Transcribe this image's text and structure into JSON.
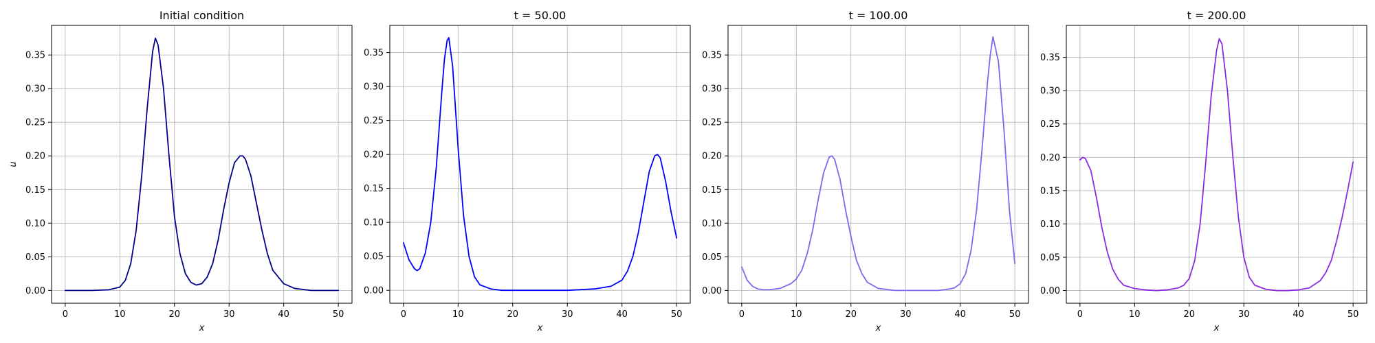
{
  "chart_data": [
    {
      "type": "line",
      "title": "Initial condition",
      "xlabel": "x",
      "ylabel": "u",
      "xlim": [
        -2.5,
        52.5
      ],
      "ylim": [
        -0.019,
        0.394
      ],
      "xticks": [
        0,
        10,
        20,
        30,
        40,
        50
      ],
      "yticks": [
        0.0,
        0.05,
        0.1,
        0.15,
        0.2,
        0.25,
        0.3,
        0.35
      ],
      "grid": true,
      "series": [
        {
          "color": "#00008b",
          "x": [
            0,
            5,
            8,
            10,
            11,
            12,
            13,
            14,
            15,
            16,
            16.5,
            17,
            18,
            19,
            20,
            21,
            22,
            23,
            24,
            25,
            26,
            27,
            28,
            29,
            30,
            31,
            32,
            32.5,
            33,
            34,
            35,
            36,
            37,
            38,
            40,
            42,
            45,
            50
          ],
          "y": [
            0.0,
            0.0,
            0.001,
            0.005,
            0.015,
            0.04,
            0.09,
            0.17,
            0.27,
            0.355,
            0.375,
            0.365,
            0.3,
            0.2,
            0.11,
            0.055,
            0.025,
            0.012,
            0.008,
            0.01,
            0.02,
            0.04,
            0.075,
            0.12,
            0.16,
            0.19,
            0.2,
            0.2,
            0.195,
            0.17,
            0.13,
            0.09,
            0.055,
            0.03,
            0.01,
            0.003,
            0.0,
            0.0
          ]
        }
      ]
    },
    {
      "type": "line",
      "title": "t = 50.00",
      "xlabel": "x",
      "ylabel": "",
      "xlim": [
        -2.5,
        52.5
      ],
      "ylim": [
        -0.019,
        0.39
      ],
      "xticks": [
        0,
        10,
        20,
        30,
        40,
        50
      ],
      "yticks": [
        0.0,
        0.05,
        0.1,
        0.15,
        0.2,
        0.25,
        0.3,
        0.35
      ],
      "grid": true,
      "series": [
        {
          "color": "#0000ff",
          "x": [
            0,
            1,
            2,
            2.5,
            3,
            4,
            5,
            6,
            7,
            7.5,
            8,
            8.3,
            9,
            10,
            11,
            12,
            13,
            14,
            16,
            18,
            20,
            25,
            30,
            35,
            38,
            40,
            41,
            42,
            43,
            44,
            45,
            46,
            46.5,
            47,
            48,
            49,
            50
          ],
          "y": [
            0.07,
            0.045,
            0.032,
            0.029,
            0.032,
            0.055,
            0.1,
            0.18,
            0.29,
            0.34,
            0.368,
            0.372,
            0.33,
            0.21,
            0.11,
            0.05,
            0.02,
            0.008,
            0.002,
            0.0,
            0.0,
            0.0,
            0.0,
            0.002,
            0.006,
            0.015,
            0.028,
            0.05,
            0.085,
            0.13,
            0.175,
            0.198,
            0.2,
            0.195,
            0.16,
            0.115,
            0.077
          ]
        }
      ]
    },
    {
      "type": "line",
      "title": "t = 100.00",
      "xlabel": "x",
      "ylabel": "",
      "xlim": [
        -2.5,
        52.5
      ],
      "ylim": [
        -0.019,
        0.394
      ],
      "xticks": [
        0,
        10,
        20,
        30,
        40,
        50
      ],
      "yticks": [
        0.0,
        0.05,
        0.1,
        0.15,
        0.2,
        0.25,
        0.3,
        0.35
      ],
      "grid": true,
      "series": [
        {
          "color": "#7b68ee",
          "x": [
            0,
            1,
            2,
            3,
            4,
            5,
            7,
            9,
            10,
            11,
            12,
            13,
            14,
            15,
            16,
            16.5,
            17,
            18,
            19,
            20,
            21,
            22,
            23,
            25,
            28,
            32,
            36,
            38,
            39,
            40,
            41,
            42,
            43,
            44,
            45,
            45.5,
            46,
            47,
            48,
            49,
            50
          ],
          "y": [
            0.035,
            0.015,
            0.006,
            0.002,
            0.001,
            0.001,
            0.003,
            0.01,
            0.017,
            0.03,
            0.055,
            0.09,
            0.135,
            0.175,
            0.198,
            0.2,
            0.195,
            0.165,
            0.12,
            0.08,
            0.045,
            0.025,
            0.012,
            0.003,
            0.0,
            0.0,
            0.0,
            0.002,
            0.004,
            0.01,
            0.025,
            0.06,
            0.12,
            0.21,
            0.31,
            0.35,
            0.377,
            0.34,
            0.24,
            0.12,
            0.04
          ]
        }
      ]
    },
    {
      "type": "line",
      "title": "t = 200.00",
      "xlabel": "x",
      "ylabel": "",
      "xlim": [
        -2.5,
        52.5
      ],
      "ylim": [
        -0.019,
        0.398
      ],
      "xticks": [
        0,
        10,
        20,
        30,
        40,
        50
      ],
      "yticks": [
        0.0,
        0.05,
        0.1,
        0.15,
        0.2,
        0.25,
        0.3,
        0.35
      ],
      "grid": true,
      "series": [
        {
          "color": "#8a2be2",
          "x": [
            0,
            0.5,
            1,
            2,
            3,
            4,
            5,
            6,
            7,
            8,
            10,
            12,
            14,
            16,
            18,
            19,
            20,
            21,
            22,
            23,
            24,
            25,
            25.5,
            26,
            27,
            28,
            29,
            30,
            31,
            32,
            34,
            36,
            38,
            40,
            42,
            44,
            45,
            46,
            47,
            48,
            49,
            50
          ],
          "y": [
            0.196,
            0.2,
            0.198,
            0.18,
            0.14,
            0.095,
            0.058,
            0.032,
            0.017,
            0.008,
            0.003,
            0.001,
            0.0,
            0.001,
            0.004,
            0.008,
            0.018,
            0.045,
            0.1,
            0.19,
            0.29,
            0.36,
            0.378,
            0.37,
            0.3,
            0.2,
            0.11,
            0.05,
            0.02,
            0.008,
            0.002,
            0.0,
            0.0,
            0.001,
            0.004,
            0.015,
            0.027,
            0.045,
            0.075,
            0.11,
            0.15,
            0.193
          ]
        }
      ]
    }
  ]
}
